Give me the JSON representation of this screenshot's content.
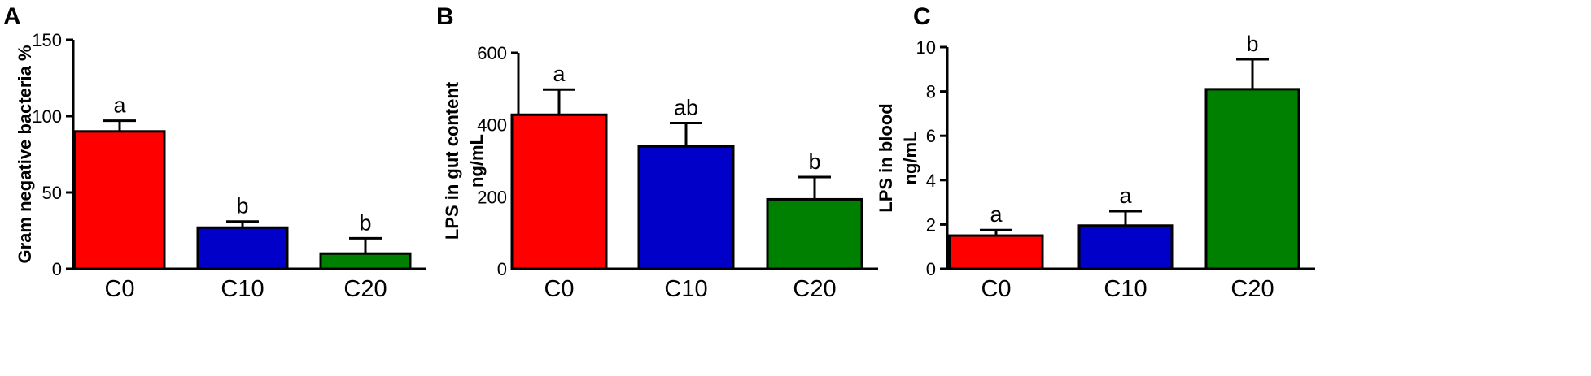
{
  "chart_data": [
    {
      "type": "bar",
      "panel": "A",
      "ylabel": [
        "Gram negative bacteria %"
      ],
      "ylim": [
        0,
        150
      ],
      "yticks": [
        0,
        50,
        100,
        150
      ],
      "categories": [
        "C0",
        "C10",
        "C20"
      ],
      "values": [
        90,
        27,
        10
      ],
      "errors": [
        7,
        4,
        10
      ],
      "significance": [
        "a",
        "b",
        "b"
      ],
      "colors": [
        "#ff0000",
        "#0000c8",
        "#008000"
      ]
    },
    {
      "type": "bar",
      "panel": "B",
      "ylabel": [
        "LPS in gut content",
        "ng/mL"
      ],
      "ylim": [
        0,
        600
      ],
      "yticks": [
        0,
        200,
        400,
        600
      ],
      "categories": [
        "C0",
        "C10",
        "C20"
      ],
      "values": [
        428,
        340,
        193
      ],
      "errors": [
        70,
        65,
        62
      ],
      "significance": [
        "a",
        "ab",
        "b"
      ],
      "colors": [
        "#ff0000",
        "#0000c8",
        "#008000"
      ]
    },
    {
      "type": "bar",
      "panel": "C",
      "ylabel": [
        "LPS in blood",
        "ng/mL"
      ],
      "ylim": [
        0,
        10
      ],
      "yticks": [
        0,
        2,
        4,
        6,
        8,
        10
      ],
      "categories": [
        "C0",
        "C10",
        "C20"
      ],
      "values": [
        1.5,
        1.95,
        8.1
      ],
      "errors": [
        0.25,
        0.65,
        1.35
      ],
      "significance": [
        "a",
        "a",
        "b"
      ],
      "colors": [
        "#ff0000",
        "#0000c8",
        "#008000"
      ]
    }
  ]
}
